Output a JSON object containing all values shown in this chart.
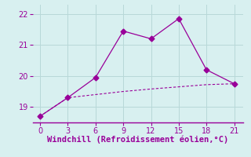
{
  "line1_x": [
    0,
    3,
    6,
    9,
    12,
    15,
    18,
    21
  ],
  "line1_y": [
    18.7,
    19.3,
    19.95,
    21.45,
    21.2,
    21.85,
    20.2,
    19.75
  ],
  "line2_x": [
    0,
    3,
    6,
    9,
    12,
    15,
    18,
    21
  ],
  "line2_y": [
    18.7,
    19.3,
    19.4,
    19.5,
    19.58,
    19.65,
    19.72,
    19.75
  ],
  "line_color": "#990099",
  "bg_color": "#d8f0f0",
  "grid_color": "#b8d8d8",
  "xlabel": "Windchill (Refroidissement éolien,°C)",
  "xlabel_fontsize": 7.5,
  "ylim": [
    18.5,
    22.3
  ],
  "xlim": [
    -0.8,
    22.0
  ],
  "yticks": [
    19,
    20,
    21,
    22
  ],
  "xticks": [
    0,
    3,
    6,
    9,
    12,
    15,
    18,
    21
  ],
  "tick_fontsize": 7,
  "marker_size": 3.5,
  "lw1": 0.9,
  "lw2": 0.8
}
